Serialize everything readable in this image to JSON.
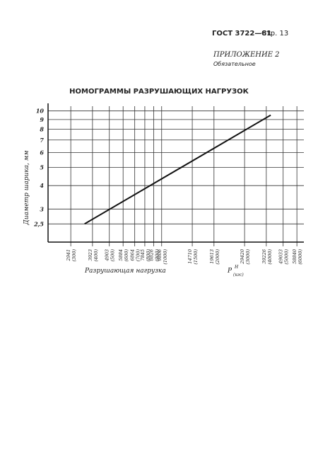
{
  "header": {
    "standard": "ГОСТ 3722—81",
    "page": "Стр. 13",
    "appendix": "ПРИЛОЖЕНИЕ 2",
    "status": "Обязательное"
  },
  "chart_data": {
    "type": "line",
    "title": "НОМОГРАММЫ РАЗРУШАЮЩИХ НАГРУЗОК",
    "ylabel": "Диаметр шарика, мм",
    "xlabel": "Разрушающая нагрузка",
    "xlabel_symbol": "Р",
    "xlabel_superscript": "Н",
    "xlabel_subscript": "(кгс)",
    "x_log": true,
    "y_log": true,
    "grid": true,
    "xlim": [
      222,
      6580
    ],
    "ylim": [
      2,
      10.6
    ],
    "xticks": [
      {
        "value": 300,
        "label": "2941",
        "sublabel": "(300)"
      },
      {
        "value": 400,
        "label": "3923",
        "sublabel": "(400)"
      },
      {
        "value": 500,
        "label": "4903",
        "sublabel": "(500)"
      },
      {
        "value": 600,
        "label": "5884",
        "sublabel": "(600)"
      },
      {
        "value": 700,
        "label": "6864",
        "sublabel": "(700)"
      },
      {
        "value": 800,
        "label": "7845",
        "sublabel": "(800)"
      },
      {
        "value": 900,
        "label": "8826",
        "sublabel": "(900)"
      },
      {
        "value": 1000,
        "label": "9806",
        "sublabel": "(1000)"
      },
      {
        "value": 1500,
        "label": "14710",
        "sublabel": "(1500)"
      },
      {
        "value": 2000,
        "label": "19613",
        "sublabel": "(2000)"
      },
      {
        "value": 3000,
        "label": "29420",
        "sublabel": "(3000)"
      },
      {
        "value": 4000,
        "label": "39226",
        "sublabel": "(4000)"
      },
      {
        "value": 5000,
        "label": "49033",
        "sublabel": "(5000)"
      },
      {
        "value": 6000,
        "label": "58840",
        "sublabel": "(6000)"
      }
    ],
    "yticks": [
      {
        "value": 2.5,
        "label": "2,5"
      },
      3,
      4,
      5,
      6,
      7,
      8,
      9,
      10
    ],
    "series": [
      {
        "color": "#111",
        "x": [
          360,
          4240
        ],
        "values": [
          2.5,
          9.5
        ]
      }
    ]
  }
}
